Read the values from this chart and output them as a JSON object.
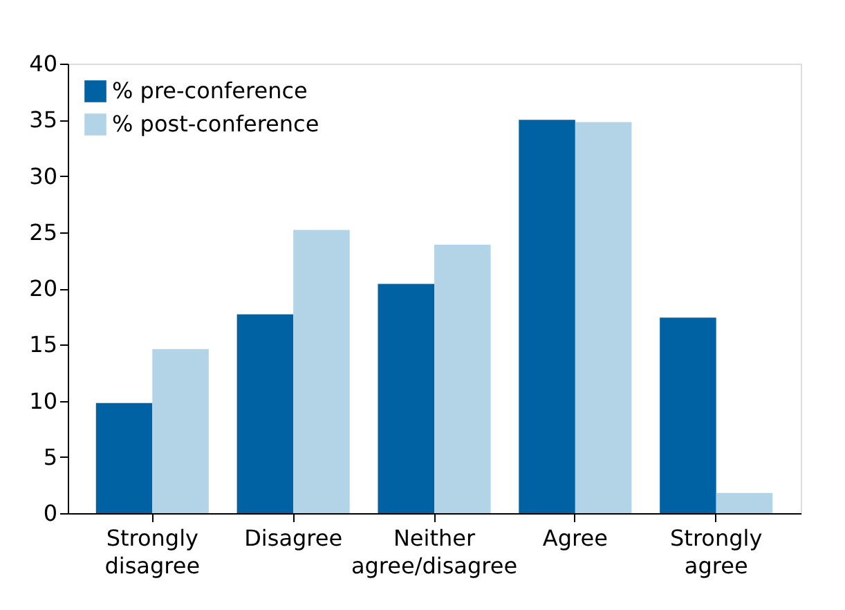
{
  "chart_data": {
    "type": "bar",
    "categories": [
      "Strongly disagree",
      "Disagree",
      "Neither agree/disagree",
      "Agree",
      "Strongly agree"
    ],
    "series": [
      {
        "name": "% pre-conference",
        "color": "#0062a3",
        "values": [
          9.8,
          17.7,
          20.4,
          35.0,
          17.4
        ]
      },
      {
        "name": "% post-conference",
        "color": "#b3d3e6",
        "values": [
          14.6,
          25.2,
          23.9,
          34.8,
          1.8
        ]
      }
    ],
    "ylim": [
      0,
      40
    ],
    "yticks": [
      0,
      5,
      10,
      15,
      20,
      25,
      30,
      35,
      40
    ],
    "grid": false,
    "legend": "top left"
  }
}
